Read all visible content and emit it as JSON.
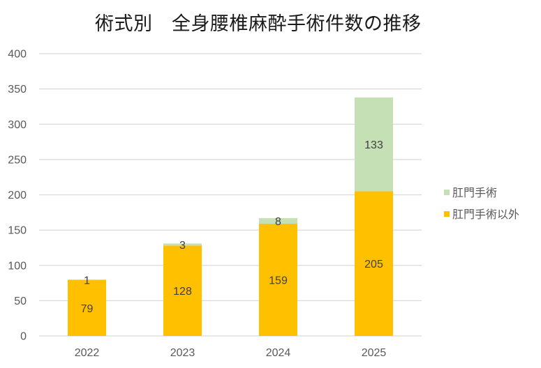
{
  "chart_data": {
    "type": "bar",
    "stacked": true,
    "title": "術式別　全身腰椎麻酔手術件数の推移",
    "xlabel": "",
    "ylabel": "",
    "categories": [
      "2022",
      "2023",
      "2024",
      "2025"
    ],
    "series": [
      {
        "name": "肛門手術以外",
        "values": [
          79,
          128,
          159,
          205
        ],
        "color": "#FFC000"
      },
      {
        "name": "肛門手術",
        "values": [
          1,
          3,
          8,
          133
        ],
        "color": "#C5E0B4"
      }
    ],
    "ylim": [
      0,
      400
    ],
    "yticks": [
      "0",
      "50",
      "100",
      "150",
      "200",
      "250",
      "300",
      "350",
      "400"
    ],
    "grid": true,
    "gridColor": "#D9D9D9",
    "legend": {
      "position": "right",
      "entries": [
        "肛門手術",
        "肛門手術以外"
      ]
    }
  }
}
